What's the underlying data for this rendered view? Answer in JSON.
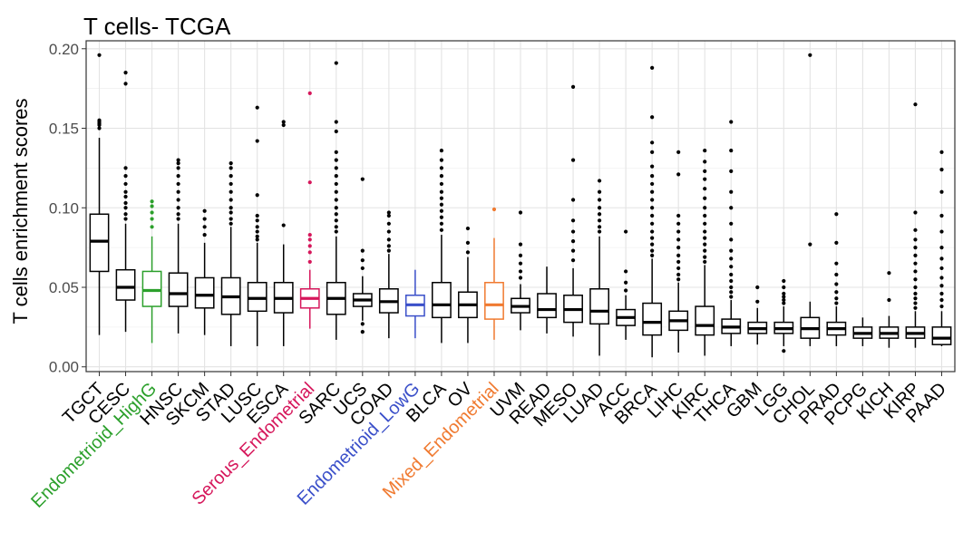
{
  "chart_data": {
    "type": "boxplot",
    "title": "T cells- TCGA",
    "ylabel": "T cells enrichment scores",
    "xlabel": "",
    "ylim": [
      -0.003,
      0.205
    ],
    "yticks": [
      0.0,
      0.05,
      0.1,
      0.15,
      0.2
    ],
    "ytick_labels": [
      "0.00",
      "0.05",
      "0.10",
      "0.15",
      "0.20"
    ],
    "grid": true,
    "legend": "none",
    "default_color": "#000000",
    "categories": [
      {
        "name": "TGCT",
        "color": "#000000",
        "lo": 0.02,
        "q1": 0.06,
        "med": 0.079,
        "q3": 0.096,
        "hi": 0.144,
        "outliers": [
          0.15,
          0.152,
          0.153,
          0.154,
          0.155,
          0.196
        ]
      },
      {
        "name": "CESC",
        "color": "#000000",
        "lo": 0.022,
        "q1": 0.042,
        "med": 0.05,
        "q3": 0.061,
        "hi": 0.09,
        "outliers": [
          0.093,
          0.096,
          0.1,
          0.103,
          0.107,
          0.11,
          0.115,
          0.12,
          0.125,
          0.178,
          0.185
        ]
      },
      {
        "name": "Endometrioid_HighG",
        "color": "#2ca02c",
        "lo": 0.015,
        "q1": 0.038,
        "med": 0.048,
        "q3": 0.06,
        "hi": 0.082,
        "outliers": [
          0.088,
          0.093,
          0.097,
          0.101,
          0.104
        ]
      },
      {
        "name": "HNSC",
        "color": "#000000",
        "lo": 0.021,
        "q1": 0.038,
        "med": 0.046,
        "q3": 0.059,
        "hi": 0.09,
        "outliers": [
          0.093,
          0.096,
          0.1,
          0.105,
          0.11,
          0.115,
          0.12,
          0.125,
          0.128,
          0.13
        ]
      },
      {
        "name": "SKCM",
        "color": "#000000",
        "lo": 0.02,
        "q1": 0.037,
        "med": 0.045,
        "q3": 0.056,
        "hi": 0.078,
        "outliers": [
          0.083,
          0.088,
          0.093,
          0.098
        ]
      },
      {
        "name": "STAD",
        "color": "#000000",
        "lo": 0.013,
        "q1": 0.033,
        "med": 0.044,
        "q3": 0.056,
        "hi": 0.088,
        "outliers": [
          0.09,
          0.093,
          0.097,
          0.1,
          0.105,
          0.11,
          0.115,
          0.12,
          0.125,
          0.128
        ]
      },
      {
        "name": "LUSC",
        "color": "#000000",
        "lo": 0.013,
        "q1": 0.035,
        "med": 0.043,
        "q3": 0.053,
        "hi": 0.078,
        "outliers": [
          0.08,
          0.082,
          0.085,
          0.088,
          0.092,
          0.095,
          0.108,
          0.142,
          0.163
        ]
      },
      {
        "name": "ESCA",
        "color": "#000000",
        "lo": 0.013,
        "q1": 0.034,
        "med": 0.043,
        "q3": 0.053,
        "hi": 0.077,
        "outliers": [
          0.089,
          0.152,
          0.154
        ]
      },
      {
        "name": "Serous_Endometrial",
        "color": "#d6175b",
        "lo": 0.024,
        "q1": 0.037,
        "med": 0.043,
        "q3": 0.049,
        "hi": 0.061,
        "outliers": [
          0.066,
          0.072,
          0.076,
          0.08,
          0.083,
          0.116,
          0.172
        ]
      },
      {
        "name": "SARC",
        "color": "#000000",
        "lo": 0.017,
        "q1": 0.033,
        "med": 0.043,
        "q3": 0.053,
        "hi": 0.082,
        "outliers": [
          0.085,
          0.088,
          0.092,
          0.096,
          0.1,
          0.105,
          0.11,
          0.115,
          0.12,
          0.125,
          0.13,
          0.135,
          0.148,
          0.154,
          0.191
        ]
      },
      {
        "name": "UCS",
        "color": "#000000",
        "lo": 0.029,
        "q1": 0.038,
        "med": 0.042,
        "q3": 0.046,
        "hi": 0.057,
        "outliers": [
          0.022,
          0.027,
          0.062,
          0.067,
          0.073,
          0.118
        ]
      },
      {
        "name": "COAD",
        "color": "#000000",
        "lo": 0.018,
        "q1": 0.034,
        "med": 0.041,
        "q3": 0.049,
        "hi": 0.071,
        "outliers": [
          0.073,
          0.076,
          0.08,
          0.085,
          0.09,
          0.095,
          0.097
        ]
      },
      {
        "name": "Endometrioid_LowG",
        "color": "#3a4fc9",
        "lo": 0.018,
        "q1": 0.032,
        "med": 0.039,
        "q3": 0.045,
        "hi": 0.061,
        "outliers": []
      },
      {
        "name": "BLCA",
        "color": "#000000",
        "lo": 0.015,
        "q1": 0.031,
        "med": 0.039,
        "q3": 0.053,
        "hi": 0.083,
        "outliers": [
          0.086,
          0.09,
          0.094,
          0.098,
          0.102,
          0.106,
          0.11,
          0.115,
          0.12,
          0.125,
          0.13,
          0.136
        ]
      },
      {
        "name": "OV",
        "color": "#000000",
        "lo": 0.015,
        "q1": 0.031,
        "med": 0.039,
        "q3": 0.047,
        "hi": 0.069,
        "outliers": [
          0.072,
          0.078,
          0.087
        ]
      },
      {
        "name": "Mixed_Endometrial",
        "color": "#f07a30",
        "lo": 0.017,
        "q1": 0.03,
        "med": 0.039,
        "q3": 0.053,
        "hi": 0.081,
        "outliers": [
          0.099
        ]
      },
      {
        "name": "UVM",
        "color": "#000000",
        "lo": 0.023,
        "q1": 0.034,
        "med": 0.038,
        "q3": 0.043,
        "hi": 0.052,
        "outliers": [
          0.056,
          0.06,
          0.065,
          0.07,
          0.077,
          0.097
        ]
      },
      {
        "name": "READ",
        "color": "#000000",
        "lo": 0.021,
        "q1": 0.031,
        "med": 0.036,
        "q3": 0.046,
        "hi": 0.063,
        "outliers": []
      },
      {
        "name": "MESO",
        "color": "#000000",
        "lo": 0.019,
        "q1": 0.028,
        "med": 0.036,
        "q3": 0.045,
        "hi": 0.062,
        "outliers": [
          0.067,
          0.073,
          0.079,
          0.085,
          0.092,
          0.105,
          0.13,
          0.176
        ]
      },
      {
        "name": "LUAD",
        "color": "#000000",
        "lo": 0.007,
        "q1": 0.027,
        "med": 0.035,
        "q3": 0.049,
        "hi": 0.082,
        "outliers": [
          0.085,
          0.088,
          0.092,
          0.096,
          0.1,
          0.105,
          0.11,
          0.117
        ]
      },
      {
        "name": "ACC",
        "color": "#000000",
        "lo": 0.017,
        "q1": 0.026,
        "med": 0.031,
        "q3": 0.036,
        "hi": 0.045,
        "outliers": [
          0.048,
          0.053,
          0.06,
          0.085
        ]
      },
      {
        "name": "BRCA",
        "color": "#000000",
        "lo": 0.006,
        "q1": 0.02,
        "med": 0.028,
        "q3": 0.04,
        "hi": 0.068,
        "outliers": [
          0.07,
          0.073,
          0.077,
          0.081,
          0.085,
          0.09,
          0.095,
          0.1,
          0.105,
          0.11,
          0.115,
          0.12,
          0.126,
          0.135,
          0.141,
          0.157,
          0.188
        ]
      },
      {
        "name": "LIHC",
        "color": "#000000",
        "lo": 0.009,
        "q1": 0.023,
        "med": 0.029,
        "q3": 0.035,
        "hi": 0.053,
        "outliers": [
          0.055,
          0.058,
          0.062,
          0.066,
          0.07,
          0.075,
          0.08,
          0.085,
          0.09,
          0.095,
          0.121,
          0.135
        ]
      },
      {
        "name": "KIRC",
        "color": "#000000",
        "lo": 0.007,
        "q1": 0.02,
        "med": 0.026,
        "q3": 0.038,
        "hi": 0.064,
        "outliers": [
          0.066,
          0.069,
          0.073,
          0.077,
          0.081,
          0.085,
          0.09,
          0.095,
          0.1,
          0.106,
          0.112,
          0.118,
          0.123,
          0.129,
          0.136
        ]
      },
      {
        "name": "THCA",
        "color": "#000000",
        "lo": 0.013,
        "q1": 0.021,
        "med": 0.025,
        "q3": 0.03,
        "hi": 0.042,
        "outliers": [
          0.044,
          0.047,
          0.05,
          0.054,
          0.058,
          0.063,
          0.068,
          0.073,
          0.08,
          0.09,
          0.1,
          0.11,
          0.123,
          0.136,
          0.154
        ]
      },
      {
        "name": "GBM",
        "color": "#000000",
        "lo": 0.014,
        "q1": 0.021,
        "med": 0.024,
        "q3": 0.028,
        "hi": 0.037,
        "outliers": [
          0.041,
          0.05
        ]
      },
      {
        "name": "LGG",
        "color": "#000000",
        "lo": 0.013,
        "q1": 0.021,
        "med": 0.024,
        "q3": 0.028,
        "hi": 0.038,
        "outliers": [
          0.01,
          0.04,
          0.042,
          0.044,
          0.046,
          0.05,
          0.054
        ]
      },
      {
        "name": "CHOL",
        "color": "#000000",
        "lo": 0.013,
        "q1": 0.018,
        "med": 0.024,
        "q3": 0.031,
        "hi": 0.041,
        "outliers": [
          0.077,
          0.196
        ]
      },
      {
        "name": "PRAD",
        "color": "#000000",
        "lo": 0.013,
        "q1": 0.02,
        "med": 0.024,
        "q3": 0.028,
        "hi": 0.038,
        "outliers": [
          0.04,
          0.043,
          0.047,
          0.052,
          0.058,
          0.065,
          0.078,
          0.096
        ]
      },
      {
        "name": "PCPG",
        "color": "#000000",
        "lo": 0.013,
        "q1": 0.018,
        "med": 0.021,
        "q3": 0.025,
        "hi": 0.031,
        "outliers": []
      },
      {
        "name": "KICH",
        "color": "#000000",
        "lo": 0.012,
        "q1": 0.018,
        "med": 0.021,
        "q3": 0.025,
        "hi": 0.032,
        "outliers": [
          0.042,
          0.059
        ]
      },
      {
        "name": "KIRP",
        "color": "#000000",
        "lo": 0.012,
        "q1": 0.018,
        "med": 0.021,
        "q3": 0.025,
        "hi": 0.035,
        "outliers": [
          0.037,
          0.04,
          0.043,
          0.046,
          0.05,
          0.055,
          0.06,
          0.065,
          0.07,
          0.075,
          0.08,
          0.086,
          0.097,
          0.165
        ]
      },
      {
        "name": "PAAD",
        "color": "#000000",
        "lo": 0.013,
        "q1": 0.014,
        "med": 0.018,
        "q3": 0.025,
        "hi": 0.035,
        "outliers": [
          0.038,
          0.042,
          0.046,
          0.051,
          0.056,
          0.062,
          0.068,
          0.075,
          0.085,
          0.095,
          0.11,
          0.124,
          0.135
        ]
      }
    ]
  }
}
